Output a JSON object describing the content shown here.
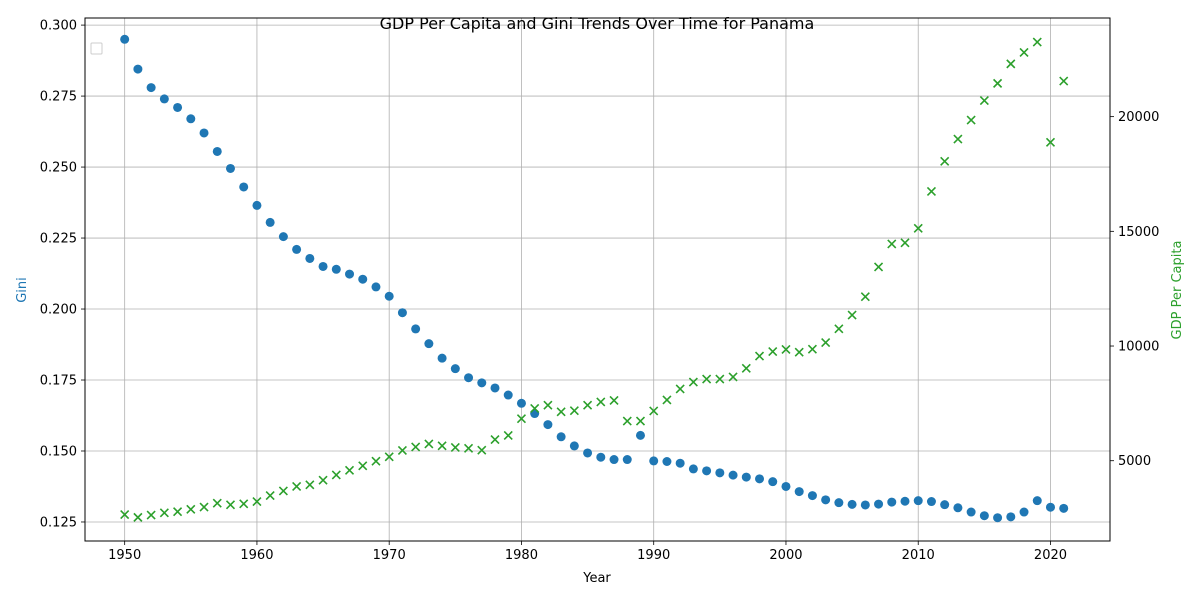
{
  "chart_data": {
    "type": "scatter",
    "title": "GDP Per Capita and Gini Trends Over Time for Panama",
    "xlabel": "Year",
    "ylabel_left": "Gini",
    "ylabel_right": "GDP Per Capita",
    "xlim": [
      1947.0,
      2024.5
    ],
    "ylim_left": [
      0.1183,
      0.3025
    ],
    "ylim_right": [
      1500,
      24300
    ],
    "x_ticks": [
      1950,
      1960,
      1970,
      1980,
      1990,
      2000,
      2010,
      2020
    ],
    "y_ticks_left": [
      0.125,
      0.15,
      0.175,
      0.2,
      0.225,
      0.25,
      0.275,
      0.3
    ],
    "y_ticks_left_labels": [
      "0.125",
      "0.150",
      "0.175",
      "0.200",
      "0.225",
      "0.250",
      "0.275",
      "0.300"
    ],
    "y_ticks_right": [
      5000,
      10000,
      15000,
      20000
    ],
    "grid": true,
    "legend": "top-left (empty)",
    "years": [
      1950,
      1951,
      1952,
      1953,
      1954,
      1955,
      1956,
      1957,
      1958,
      1959,
      1960,
      1961,
      1962,
      1963,
      1964,
      1965,
      1966,
      1967,
      1968,
      1969,
      1970,
      1971,
      1972,
      1973,
      1974,
      1975,
      1976,
      1977,
      1978,
      1979,
      1980,
      1981,
      1982,
      1983,
      1984,
      1985,
      1986,
      1987,
      1988,
      1989,
      1990,
      1991,
      1992,
      1993,
      1994,
      1995,
      1996,
      1997,
      1998,
      1999,
      2000,
      2001,
      2002,
      2003,
      2004,
      2005,
      2006,
      2007,
      2008,
      2009,
      2010,
      2011,
      2012,
      2013,
      2014,
      2015,
      2016,
      2017,
      2018,
      2019,
      2020,
      2021
    ],
    "series": [
      {
        "axis": "left",
        "marker": "circle",
        "color": "#1f77b4",
        "values": [
          0.295,
          0.2845,
          0.278,
          0.274,
          0.271,
          0.267,
          0.262,
          0.2555,
          0.2495,
          0.243,
          0.2365,
          0.2305,
          0.2255,
          0.221,
          0.2178,
          0.215,
          0.214,
          0.2123,
          0.2105,
          0.2078,
          0.2045,
          0.1987,
          0.193,
          0.1878,
          0.1827,
          0.179,
          0.1758,
          0.174,
          0.1722,
          0.1697,
          0.1668,
          0.1632,
          0.1593,
          0.155,
          0.1518,
          0.1493,
          0.1478,
          0.147,
          0.147,
          0.1555,
          0.1465,
          0.1463,
          0.1457,
          0.1437,
          0.143,
          0.1423,
          0.1415,
          0.1408,
          0.1402,
          0.1392,
          0.1375,
          0.1357,
          0.1343,
          0.1328,
          0.1318,
          0.1312,
          0.131,
          0.1313,
          0.132,
          0.1323,
          0.1325,
          0.1322,
          0.1311,
          0.13,
          0.1285,
          0.1272,
          0.1265,
          0.1268,
          0.1285,
          0.1325,
          0.1302,
          0.1298
        ]
      },
      {
        "axis": "right",
        "marker": "x",
        "color": "#2ca02c",
        "values": [
          2650,
          2530,
          2630,
          2730,
          2780,
          2880,
          2980,
          3150,
          3080,
          3120,
          3220,
          3480,
          3680,
          3880,
          3950,
          4150,
          4380,
          4580,
          4780,
          4980,
          5170,
          5450,
          5600,
          5730,
          5650,
          5580,
          5540,
          5460,
          5920,
          6100,
          6830,
          7280,
          7420,
          7130,
          7180,
          7420,
          7560,
          7630,
          6730,
          6730,
          7170,
          7650,
          8130,
          8430,
          8560,
          8560,
          8650,
          9030,
          9560,
          9760,
          9850,
          9730,
          9860,
          10150,
          10750,
          11350,
          12150,
          13450,
          14450,
          14500,
          15130,
          16740,
          18050,
          19020,
          19850,
          20700,
          21450,
          22300,
          22800,
          23250,
          18880,
          21550
        ]
      }
    ]
  }
}
